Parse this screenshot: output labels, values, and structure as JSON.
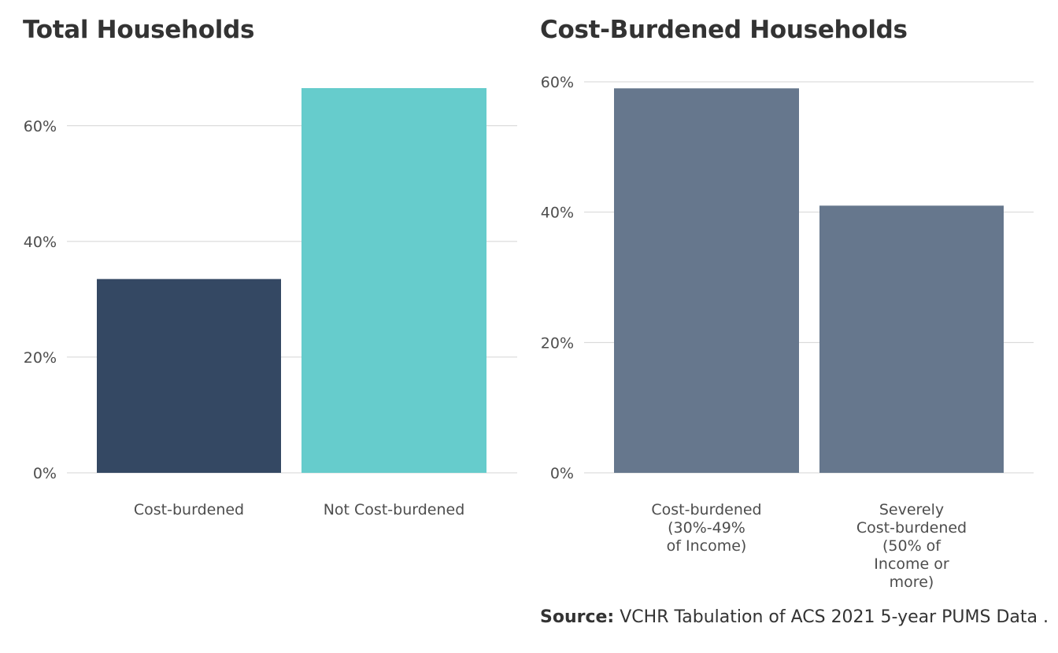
{
  "source": {
    "label": "Source:",
    "text": "VCHR Tabulation of ACS 2021 5-year PUMS Data ."
  },
  "chart_data": [
    {
      "type": "bar",
      "title": "Total Households",
      "categories": [
        [
          "Cost-burdened"
        ],
        [
          "Not Cost-burdened"
        ]
      ],
      "values": [
        33.5,
        66.5
      ],
      "colors": [
        "#344863",
        "#66cccc"
      ],
      "ylim": [
        0,
        66.5
      ],
      "yticks": [
        0,
        20,
        40,
        60
      ],
      "ytick_labels": [
        "0%",
        "20%",
        "40%",
        "60%"
      ],
      "grid": true
    },
    {
      "type": "bar",
      "title": "Cost-Burdened Households",
      "categories": [
        [
          "Cost-burdened",
          "(30%-49%",
          "of Income)"
        ],
        [
          "Severely",
          "Cost-burdened",
          "(50% of",
          "Income or",
          "more)"
        ]
      ],
      "values": [
        59.0,
        41.0
      ],
      "colors": [
        "#66778d",
        "#66778d"
      ],
      "ylim": [
        0,
        60
      ],
      "yticks": [
        0,
        20,
        40,
        60
      ],
      "ytick_labels": [
        "0%",
        "20%",
        "40%",
        "60%"
      ],
      "grid": true
    }
  ]
}
